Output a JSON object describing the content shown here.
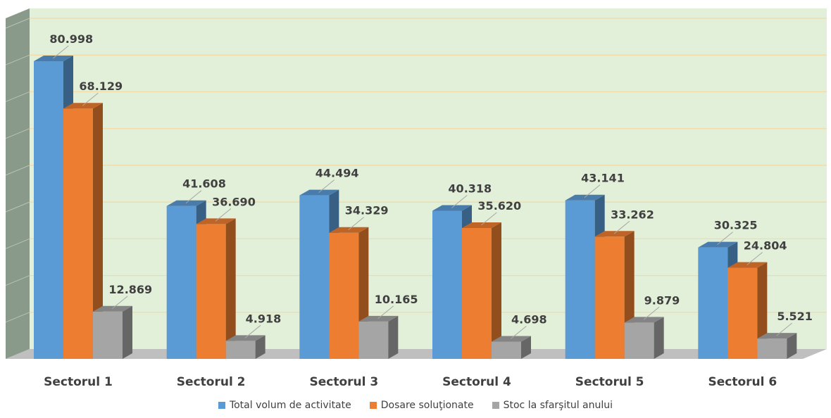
{
  "chart_data": {
    "type": "bar",
    "style": "3d-clustered-column",
    "categories": [
      "Sectorul 1",
      "Sectorul 2",
      "Sectorul 3",
      "Sectorul 4",
      "Sectorul 5",
      "Sectorul 6"
    ],
    "series": [
      {
        "name": "Total volum de activitate",
        "color": "#5B9BD5",
        "values": [
          80998,
          41608,
          44494,
          40318,
          43141,
          30325
        ],
        "labels": [
          "80.998",
          "41.608",
          "44.494",
          "40.318",
          "43.141",
          "30.325"
        ]
      },
      {
        "name": "Dosare soluţionate",
        "color": "#ED7D31",
        "values": [
          68129,
          36690,
          34329,
          35620,
          33262,
          24804
        ],
        "labels": [
          "68.129",
          "36.690",
          "34.329",
          "35.620",
          "33.262",
          "24.804"
        ]
      },
      {
        "name": "Stoc la sfarşitul anului",
        "color": "#A5A5A5",
        "values": [
          12869,
          4918,
          10165,
          4698,
          9879,
          5521
        ],
        "labels": [
          "12.869",
          "4.918",
          "10.165",
          "4.698",
          "9.879",
          "5.521"
        ]
      }
    ],
    "ylim": [
      0,
      90000
    ],
    "grid": true,
    "y_axis_labels_shown": false,
    "legend_position": "bottom",
    "background_color": "#E2EFD9"
  }
}
